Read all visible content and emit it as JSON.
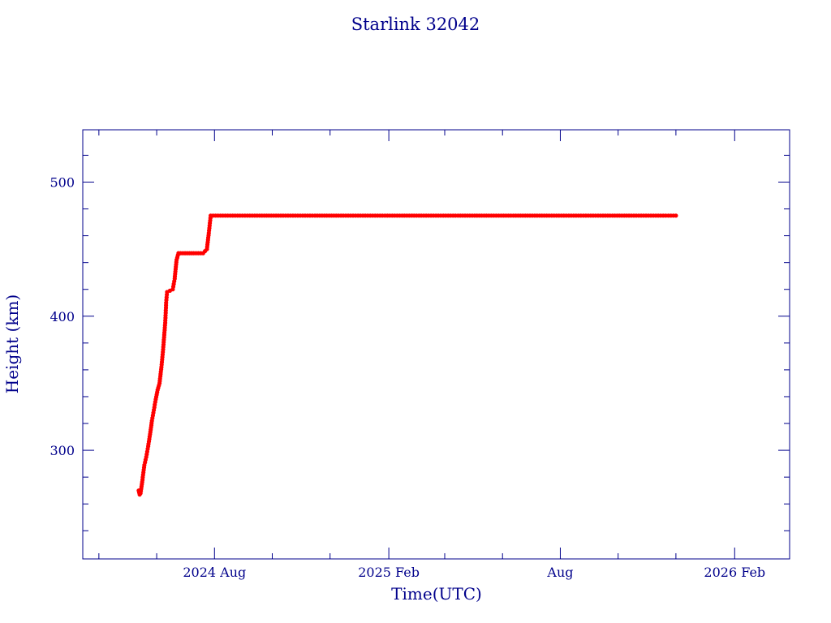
{
  "chart_data": {
    "type": "scatter",
    "title": "Starlink 32042",
    "xlabel": "Time(UTC)",
    "ylabel": "Height (km)",
    "xlim": [
      "2024-03-15",
      "2026-03-31"
    ],
    "ylim": [
      219,
      539
    ],
    "x_ticks": [
      {
        "date": "2024-08-01",
        "label": "2024 Aug"
      },
      {
        "date": "2025-02-01",
        "label": "2025 Feb"
      },
      {
        "date": "2025-08-01",
        "label": "Aug"
      },
      {
        "date": "2026-02-01",
        "label": "2026 Feb"
      }
    ],
    "y_ticks": [
      {
        "value": 300,
        "label": "300"
      },
      {
        "value": 400,
        "label": "400"
      },
      {
        "value": 500,
        "label": "500"
      }
    ],
    "x_minor_ticks": [
      "2024-04-01",
      "2024-06-01",
      "2024-10-01",
      "2024-12-01",
      "2025-04-01",
      "2025-06-01",
      "2025-10-01",
      "2025-12-01"
    ],
    "y_minor_ticks": [
      240,
      260,
      280,
      320,
      340,
      360,
      380,
      420,
      440,
      460,
      480,
      520
    ],
    "series": [
      {
        "marker_color": "#ff0000",
        "line_color": "#00e5ee",
        "points": [
          [
            "2024-05-13",
            270
          ],
          [
            "2024-05-14",
            267
          ],
          [
            "2024-05-15",
            268
          ],
          [
            "2024-05-17",
            278
          ],
          [
            "2024-05-19",
            289
          ],
          [
            "2024-05-21",
            295
          ],
          [
            "2024-05-23",
            303
          ],
          [
            "2024-05-25",
            312
          ],
          [
            "2024-05-27",
            322
          ],
          [
            "2024-05-29",
            330
          ],
          [
            "2024-05-31",
            338
          ],
          [
            "2024-06-02",
            345
          ],
          [
            "2024-06-04",
            350
          ],
          [
            "2024-06-06",
            362
          ],
          [
            "2024-06-08",
            377
          ],
          [
            "2024-06-10",
            395
          ],
          [
            "2024-06-11",
            410
          ],
          [
            "2024-06-12",
            418
          ],
          [
            "2024-06-15",
            419
          ],
          [
            "2024-06-18",
            420
          ],
          [
            "2024-06-20",
            428
          ],
          [
            "2024-06-22",
            442
          ],
          [
            "2024-06-24",
            447
          ],
          [
            "2024-07-01",
            447
          ],
          [
            "2024-07-10",
            447
          ],
          [
            "2024-07-20",
            447
          ],
          [
            "2024-07-24",
            450
          ],
          [
            "2024-07-26",
            462
          ],
          [
            "2024-07-28",
            475
          ],
          [
            "2024-08-15",
            475
          ],
          [
            "2024-09-15",
            475
          ],
          [
            "2024-10-15",
            475
          ],
          [
            "2024-11-15",
            475
          ],
          [
            "2024-12-15",
            475
          ],
          [
            "2025-01-15",
            475
          ],
          [
            "2025-02-15",
            475
          ],
          [
            "2025-03-15",
            475
          ],
          [
            "2025-04-15",
            475
          ],
          [
            "2025-05-15",
            475
          ],
          [
            "2025-06-15",
            475
          ],
          [
            "2025-07-15",
            475
          ],
          [
            "2025-08-15",
            475
          ],
          [
            "2025-09-15",
            475
          ],
          [
            "2025-10-15",
            475
          ],
          [
            "2025-11-15",
            475
          ],
          [
            "2025-12-01",
            475
          ]
        ]
      }
    ],
    "grid": false,
    "legend": "none"
  }
}
